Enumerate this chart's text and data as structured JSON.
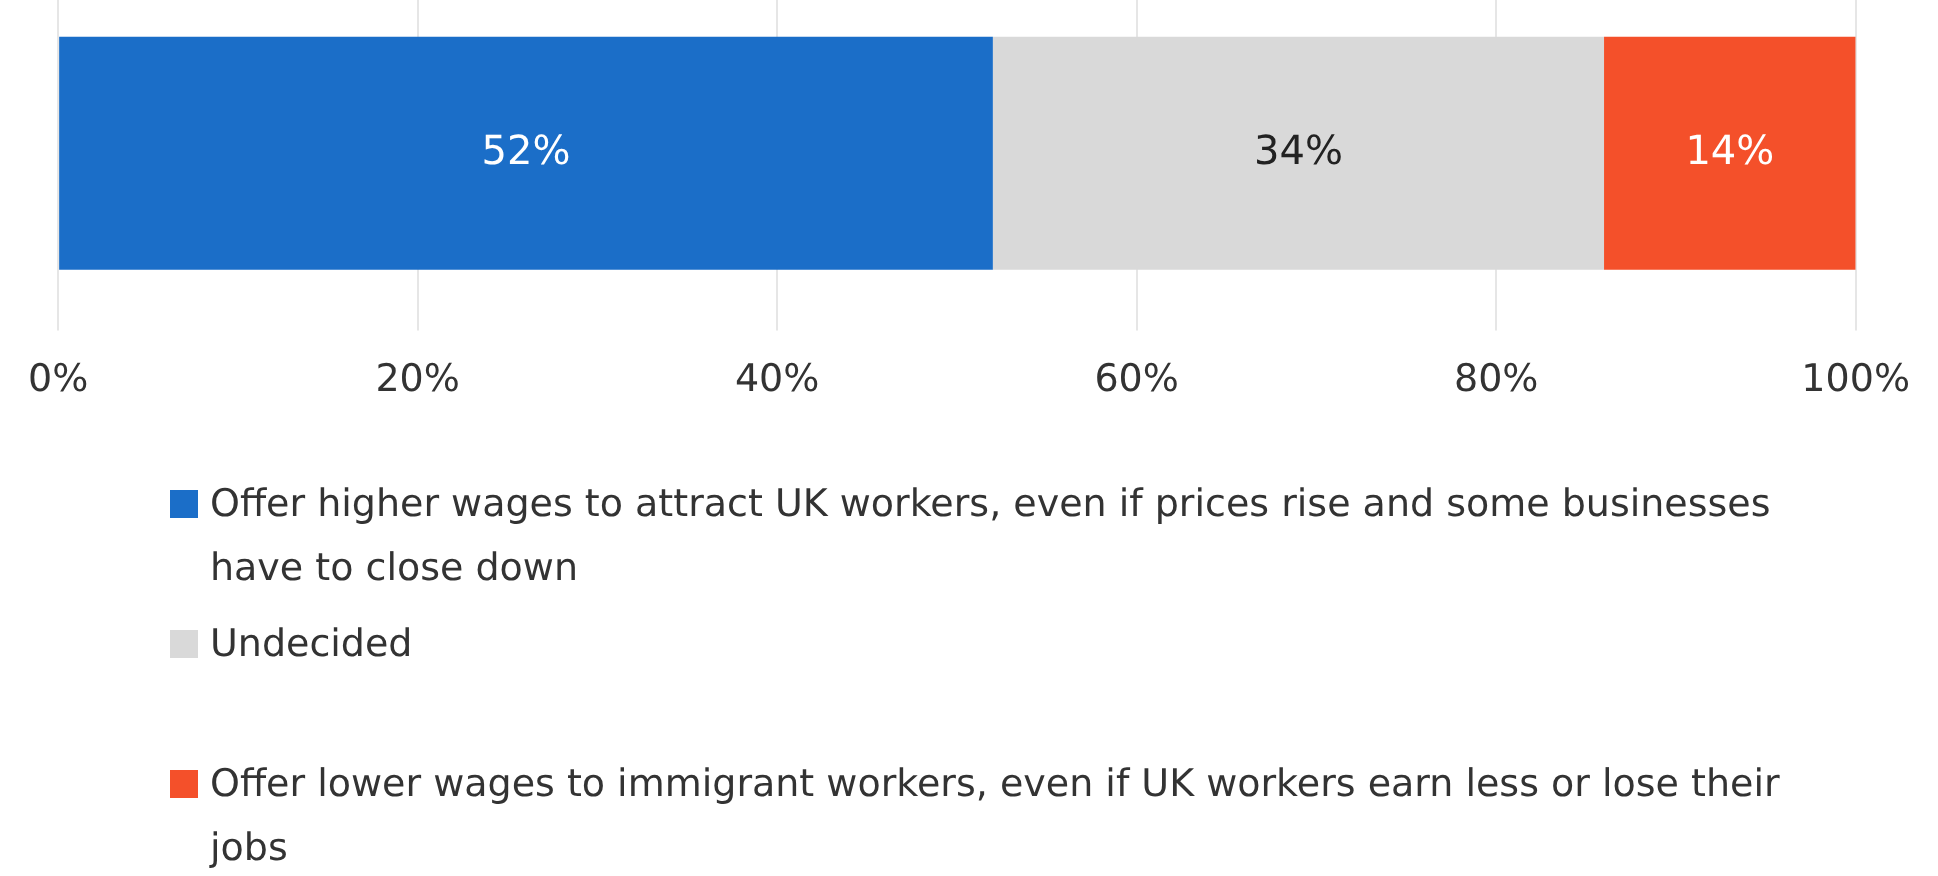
{
  "chart_data": {
    "type": "bar",
    "orientation": "horizontal",
    "stacked": true,
    "categories": [
      null
    ],
    "series": [
      {
        "name": "Offer higher wages to attract UK workers, even if prices rise and some businesses have to close down",
        "color": "#1b6ec8",
        "values": [
          52
        ],
        "value_labels": [
          "52%"
        ]
      },
      {
        "name": "Undecided",
        "color": "#d9d9d9",
        "values": [
          34
        ],
        "value_labels": [
          "34%"
        ]
      },
      {
        "name": "Offer lower wages to immigrant workers, even if UK workers earn less or lose their jobs",
        "color": "#f4502a",
        "values": [
          14
        ],
        "value_labels": [
          "14%"
        ]
      }
    ],
    "xlim": [
      0,
      100
    ],
    "xticks": [
      {
        "value": 0,
        "label": "0%"
      },
      {
        "value": 20,
        "label": "20%"
      },
      {
        "value": 40,
        "label": "40%"
      },
      {
        "value": 60,
        "label": "60%"
      },
      {
        "value": 80,
        "label": "80%"
      },
      {
        "value": 100,
        "label": "100%"
      }
    ],
    "grid": "x",
    "legend": "bottom"
  }
}
